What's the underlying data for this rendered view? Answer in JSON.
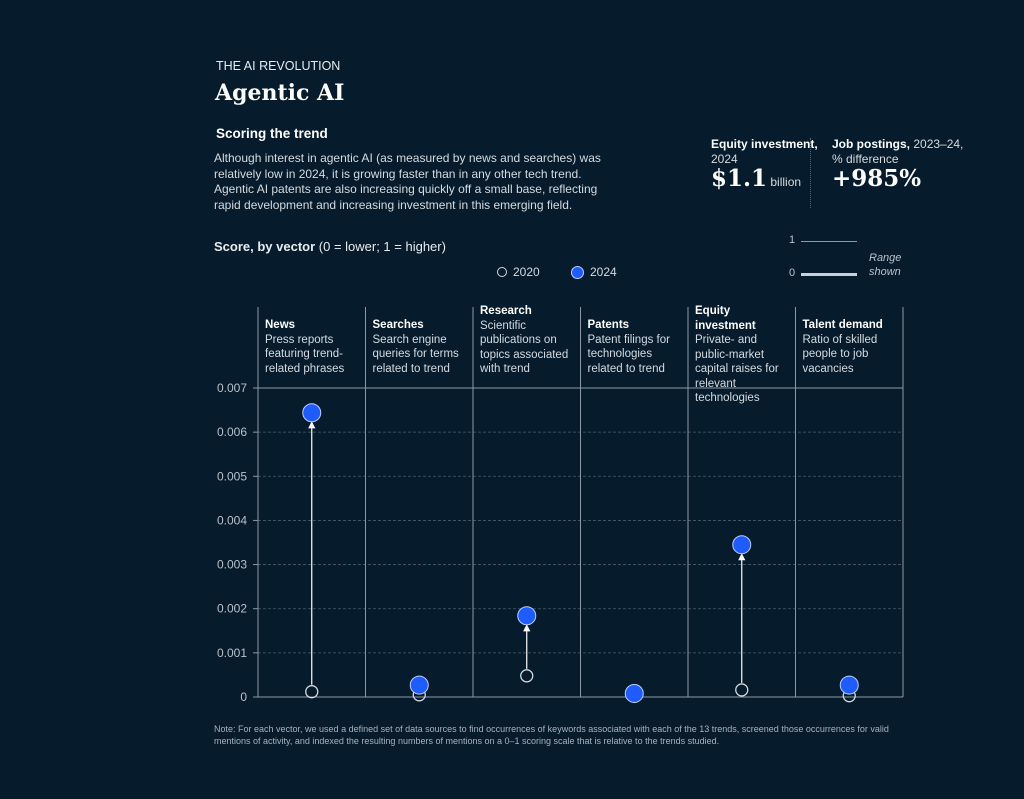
{
  "header": {
    "kicker": "THE AI REVOLUTION",
    "title": "Agentic AI",
    "subtitle": "Scoring the trend",
    "description": "Although interest in agentic AI (as measured by news and searches) was relatively low in 2024, it is growing faster than in any other tech trend. Agentic AI patents are also increasing quickly off a small base, reflecting rapid development and increasing investment in this emerging field."
  },
  "stats": [
    {
      "label": "Equity investment,",
      "sub": "2024",
      "value": "$1.1",
      "unit": "billion"
    },
    {
      "label": "Job postings,",
      "sub": "2023–24,",
      "sub2": "% difference",
      "value": "+985%"
    }
  ],
  "range_legend": {
    "top": "1",
    "bottom": "0",
    "label1": "Range",
    "label2": "shown"
  },
  "score_label": {
    "bold": "Score, by vector",
    "rest": " (0 = lower; 1 = higher)"
  },
  "colors": {
    "background": "#061b2b",
    "2024": "#1f5cff",
    "2020": "#d5dbe0"
  },
  "chart_data": {
    "type": "dot-arrow",
    "categories": [
      "News",
      "Searches",
      "Research",
      "Patents",
      "Equity investment",
      "Talent demand"
    ],
    "category_descriptions": [
      "Press reports featuring trend-related phrases",
      "Search engine queries for terms related to trend",
      "Scientific publications on topics associated with trend",
      "Patent filings for technologies related to trend",
      "Private- and public-market capital raises for relevant technologies",
      "Ratio of skilled people to job vacancies"
    ],
    "series": [
      {
        "name": "2020",
        "values": [
          0.00012,
          5e-05,
          0.00048,
          4e-05,
          0.00016,
          3e-05
        ]
      },
      {
        "name": "2024",
        "values": [
          0.00644,
          0.00027,
          0.00184,
          8e-05,
          0.00345,
          0.00027
        ]
      }
    ],
    "yticks": [
      "0",
      "0.001",
      "0.002",
      "0.003",
      "0.004",
      "0.005",
      "0.006",
      "0.007"
    ],
    "ylim": [
      0,
      0.007
    ],
    "grid": true,
    "legend": "top-right"
  },
  "note": "Note: For each vector, we used a defined set of data sources to find occurrences of keywords associated with each of the 13 trends, screened those occurrences for valid mentions of activity, and indexed the resulting numbers of mentions on a 0–1 scoring scale that is relative to the trends studied."
}
